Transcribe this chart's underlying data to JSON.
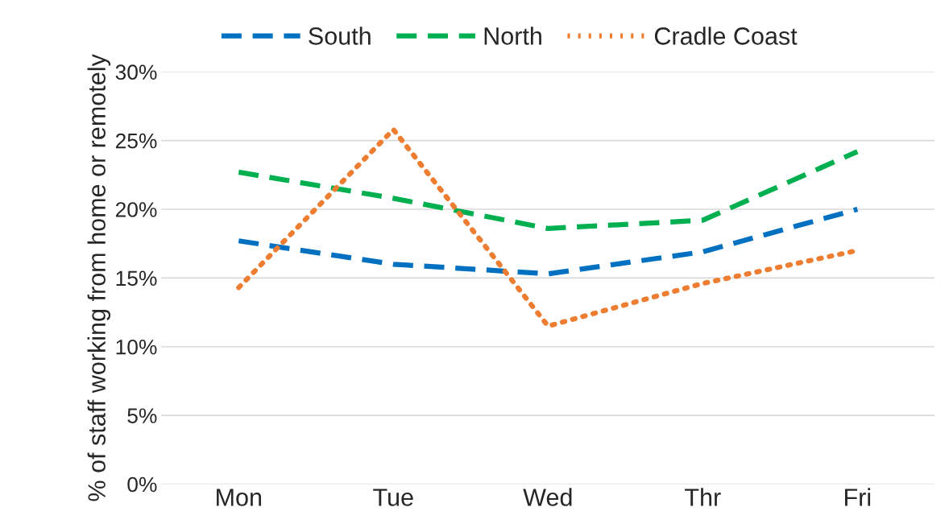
{
  "chart_data": {
    "type": "line",
    "ylabel": "% of staff working from home or remotely",
    "categories": [
      "Mon",
      "Tue",
      "Wed",
      "Thr",
      "Fri"
    ],
    "series": [
      {
        "name": "South",
        "color": "#0070c0",
        "line_style": "dashed",
        "values": [
          17.7,
          16.0,
          15.3,
          16.9,
          20.0
        ]
      },
      {
        "name": "North",
        "color": "#00b050",
        "line_style": "dashed",
        "values": [
          22.7,
          20.8,
          18.6,
          19.2,
          24.2
        ]
      },
      {
        "name": "Cradle Coast",
        "color": "#ed7d31",
        "line_style": "dotted",
        "values": [
          14.3,
          25.8,
          11.5,
          14.6,
          17.0
        ]
      }
    ],
    "ylim": [
      0,
      30
    ],
    "yticks": [
      {
        "value": 0,
        "label": "0%"
      },
      {
        "value": 5,
        "label": "5%"
      },
      {
        "value": 10,
        "label": "10%"
      },
      {
        "value": 15,
        "label": "15%"
      },
      {
        "value": 20,
        "label": "20%"
      },
      {
        "value": 25,
        "label": "25%"
      },
      {
        "value": 30,
        "label": "30%"
      }
    ],
    "grid": "y",
    "legend": "top"
  }
}
